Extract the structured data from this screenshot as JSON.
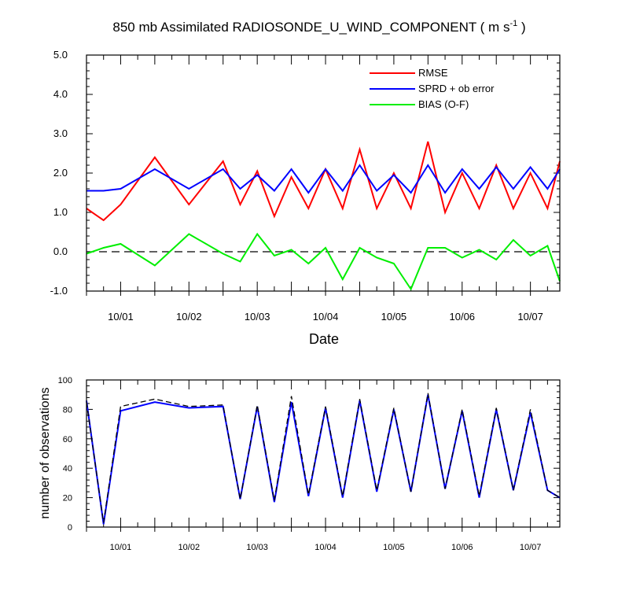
{
  "chart_data": [
    {
      "type": "line",
      "title_main": "850 mb Assimilated RADIOSONDE_U_WIND_COMPONENT ( m s",
      "title_sup": "-1",
      "title_end": " )",
      "xlabel": "Date",
      "ylabel": "",
      "xlim": [
        0,
        6.93
      ],
      "ylim": [
        -1.0,
        5.0
      ],
      "y_ticks": [
        -1.0,
        0.0,
        1.0,
        2.0,
        3.0,
        4.0,
        5.0
      ],
      "y_tick_labels": [
        "-1.0",
        "0.0",
        "1.0",
        "2.0",
        "3.0",
        "4.0",
        "5.0"
      ],
      "x_tick_values": [
        0.5,
        1.5,
        2.5,
        3.5,
        4.5,
        5.5,
        6.5
      ],
      "x_tick_labels": [
        "10/01",
        "10/02",
        "10/03",
        "10/04",
        "10/05",
        "10/06",
        "10/07"
      ],
      "zero_line": true,
      "legend": [
        "RMSE",
        "SPRD + ob error",
        "BIAS (O-F)"
      ],
      "colors": {
        "rmse": "#ff0000",
        "sprd": "#0000ff",
        "bias": "#00ee00",
        "zero": "#000000"
      },
      "x": [
        0.0,
        0.25,
        0.5,
        1.0,
        1.5,
        2.0,
        2.25,
        2.5,
        2.75,
        3.0,
        3.25,
        3.5,
        3.75,
        4.0,
        4.25,
        4.5,
        4.75,
        5.0,
        5.25,
        5.5,
        5.75,
        6.0,
        6.25,
        6.5,
        6.75,
        6.93
      ],
      "series": [
        {
          "name": "RMSE",
          "values": [
            1.1,
            0.8,
            1.2,
            2.4,
            1.2,
            2.3,
            1.2,
            2.05,
            0.9,
            1.9,
            1.1,
            2.1,
            1.1,
            2.6,
            1.1,
            2.0,
            1.1,
            2.8,
            1.0,
            2.0,
            1.1,
            2.2,
            1.1,
            2.0,
            1.1,
            2.3
          ]
        },
        {
          "name": "SPRD + ob error",
          "values": [
            1.55,
            1.55,
            1.6,
            2.1,
            1.6,
            2.1,
            1.6,
            1.95,
            1.55,
            2.1,
            1.5,
            2.1,
            1.55,
            2.2,
            1.55,
            1.95,
            1.5,
            2.2,
            1.5,
            2.1,
            1.6,
            2.15,
            1.6,
            2.15,
            1.6,
            2.1
          ]
        },
        {
          "name": "BIAS (O-F)",
          "values": [
            -0.05,
            0.1,
            0.2,
            -0.35,
            0.45,
            -0.05,
            -0.25,
            0.45,
            -0.1,
            0.05,
            -0.3,
            0.1,
            -0.7,
            0.1,
            -0.15,
            -0.3,
            -0.95,
            0.1,
            0.1,
            -0.15,
            0.05,
            -0.2,
            0.3,
            -0.1,
            0.15,
            -0.75
          ]
        }
      ]
    },
    {
      "type": "line",
      "title": "",
      "xlabel": "",
      "ylabel": "number of observations",
      "xlim": [
        0,
        6.93
      ],
      "ylim": [
        0,
        100
      ],
      "y_ticks": [
        0,
        20,
        40,
        60,
        80,
        100
      ],
      "y_tick_labels": [
        "0",
        "20",
        "40",
        "60",
        "80",
        "100"
      ],
      "x_tick_values": [
        0.5,
        1.5,
        2.5,
        3.5,
        4.5,
        5.5,
        6.5
      ],
      "x_tick_labels": [
        "10/01",
        "10/02",
        "10/03",
        "10/04",
        "10/05",
        "10/06",
        "10/07"
      ],
      "colors": {
        "assimilated": "#0000ff",
        "possible": "#000000"
      },
      "x": [
        0.0,
        0.25,
        0.5,
        1.0,
        1.5,
        2.0,
        2.25,
        2.5,
        2.75,
        3.0,
        3.25,
        3.5,
        3.75,
        4.0,
        4.25,
        4.5,
        4.75,
        5.0,
        5.25,
        5.5,
        5.75,
        6.0,
        6.25,
        6.5,
        6.75,
        6.93
      ],
      "series": [
        {
          "name": "assimilated",
          "style": "solid",
          "values": [
            86,
            2,
            79,
            85,
            81,
            82,
            19,
            82,
            17,
            85,
            21,
            81,
            20,
            86,
            24,
            80,
            24,
            90,
            26,
            79,
            20,
            80,
            25,
            78,
            25,
            20
          ]
        },
        {
          "name": "possible",
          "style": "dashed",
          "values": [
            85,
            3,
            82,
            87,
            82,
            83,
            19,
            83,
            18,
            89,
            22,
            82,
            21,
            87,
            25,
            81,
            24,
            91,
            26,
            80,
            21,
            81,
            25,
            80,
            25,
            20
          ]
        }
      ]
    }
  ]
}
